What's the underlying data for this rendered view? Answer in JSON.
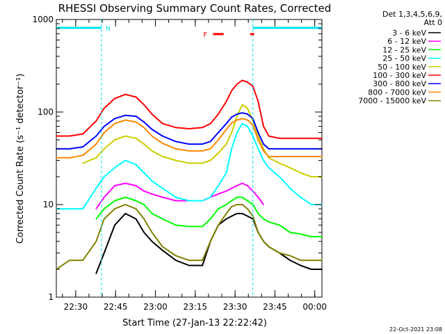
{
  "chart_data": {
    "type": "line",
    "title": "RHESSI Observing Summary Count Rates, Corrected",
    "xlabel": "Start Time (27-Jan-13 22:22:42)",
    "ylabel": "Corrected Count Rate (s⁻¹ detector⁻¹)",
    "x_unit": "minutes after 22:22:42",
    "xlim": [
      0,
      100
    ],
    "ylim": [
      1,
      1000
    ],
    "yscale": "log",
    "x_ticks": [
      {
        "value": 7.3,
        "label": "22:30"
      },
      {
        "value": 22.3,
        "label": "22:45"
      },
      {
        "value": 37.3,
        "label": "23:00"
      },
      {
        "value": 52.3,
        "label": "23:15"
      },
      {
        "value": 67.3,
        "label": "23:30"
      },
      {
        "value": 82.3,
        "label": "23:45"
      },
      {
        "value": 97.3,
        "label": "00:00"
      }
    ],
    "y_ticks": [
      {
        "value": 1,
        "label": "1"
      },
      {
        "value": 10,
        "label": "10"
      },
      {
        "value": 100,
        "label": "100"
      },
      {
        "value": 1000,
        "label": "1000"
      }
    ],
    "legend_header": [
      "Det 1,3,4,5,6,9,",
      "Att 0"
    ],
    "x": [
      0,
      5,
      10,
      15,
      18,
      22,
      26,
      30,
      33,
      36,
      40,
      45,
      50,
      55,
      58,
      61,
      64,
      66,
      68,
      70,
      72,
      74,
      76,
      78,
      80,
      84,
      88,
      92,
      96,
      100
    ],
    "series": [
      {
        "name": "3 - 6 keV",
        "color": "#000000",
        "values": [
          null,
          null,
          null,
          1.8,
          3,
          6,
          8,
          7,
          5,
          4,
          3.2,
          2.5,
          2.2,
          2.2,
          4,
          6,
          7,
          7.5,
          8,
          8,
          7.5,
          7,
          5,
          4,
          3.5,
          3,
          2.5,
          2.2,
          2,
          2
        ]
      },
      {
        "name": "6 - 12 keV",
        "color": "#ff00ff",
        "values": [
          null,
          null,
          null,
          9,
          12,
          16,
          17,
          16,
          14,
          13,
          12,
          11,
          11,
          11,
          12,
          13,
          14,
          15,
          16,
          17,
          16,
          14,
          12,
          10,
          null,
          null,
          null,
          null,
          null,
          null
        ]
      },
      {
        "name": "12 - 25 keV",
        "color": "#00ff00",
        "values": [
          null,
          null,
          null,
          7,
          9,
          11,
          12,
          11,
          10,
          8,
          7,
          6,
          5.8,
          5.8,
          7,
          9,
          10,
          11,
          12,
          12,
          11,
          10,
          8,
          7,
          6.5,
          6,
          5,
          4.8,
          4.5,
          4.5
        ]
      },
      {
        "name": "25 - 50 keV",
        "color": "#00ffff",
        "values": [
          9,
          9,
          9,
          15,
          20,
          25,
          30,
          27,
          22,
          18,
          15,
          12,
          11,
          11,
          12,
          16,
          22,
          40,
          60,
          75,
          70,
          55,
          40,
          30,
          25,
          20,
          15,
          12,
          10,
          10
        ]
      },
      {
        "name": "50 - 100 keV",
        "color": "#cccc00",
        "values": [
          null,
          null,
          28,
          32,
          40,
          50,
          55,
          52,
          45,
          38,
          33,
          30,
          28,
          28,
          30,
          36,
          45,
          60,
          90,
          120,
          110,
          80,
          55,
          40,
          32,
          28,
          25,
          22,
          20,
          20
        ]
      },
      {
        "name": "100 - 300 keV",
        "color": "#ff0000",
        "values": [
          55,
          55,
          58,
          80,
          110,
          140,
          155,
          145,
          120,
          95,
          75,
          68,
          66,
          68,
          75,
          95,
          130,
          170,
          200,
          220,
          210,
          190,
          130,
          70,
          55,
          52,
          52,
          52,
          52,
          52
        ]
      },
      {
        "name": "300 - 800 keV",
        "color": "#0000ff",
        "values": [
          40,
          40,
          42,
          55,
          70,
          85,
          92,
          90,
          78,
          65,
          55,
          48,
          45,
          45,
          48,
          60,
          75,
          88,
          95,
          98,
          95,
          85,
          60,
          45,
          40,
          40,
          40,
          40,
          40,
          40
        ]
      },
      {
        "name": "800 - 7000 keV",
        "color": "#ff8800",
        "values": [
          32,
          32,
          34,
          45,
          60,
          75,
          82,
          78,
          68,
          55,
          46,
          40,
          38,
          38,
          40,
          50,
          65,
          76,
          82,
          85,
          82,
          72,
          50,
          38,
          33,
          33,
          33,
          33,
          33,
          33
        ]
      },
      {
        "name": "7000 - 15000 keV",
        "color": "#808000",
        "values": [
          2,
          2.5,
          2.5,
          4,
          7,
          9,
          10,
          9,
          7,
          5,
          3.5,
          2.8,
          2.5,
          2.5,
          4,
          6,
          8,
          9.5,
          10,
          10,
          9,
          7.5,
          5,
          4,
          3.5,
          3,
          2.8,
          2.5,
          2.5,
          2.5
        ]
      }
    ],
    "annotations": {
      "night_label": "N",
      "night_intervals": [
        [
          0,
          17
        ],
        [
          74,
          100
        ]
      ],
      "flare_label": "F",
      "flare_intervals": [
        [
          59,
          63
        ],
        [
          73,
          74.5
        ]
      ]
    },
    "footer_date": "22-Oct-2021 23:08"
  }
}
